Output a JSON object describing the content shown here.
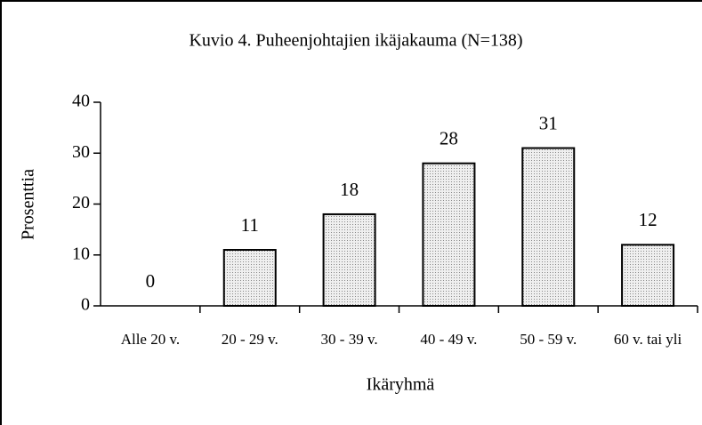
{
  "chart_data": {
    "type": "bar",
    "title": "Kuvio  4. Puheenjohtajien ikäjakauma (N=138)",
    "x_label": "Ikäryhmä",
    "y_label": "Prosenttia",
    "categories": [
      "Alle 20 v.",
      "20 - 29 v.",
      "30 - 39 v.",
      "40 - 49 v.",
      "50 - 59 v.",
      "60 v. tai yli"
    ],
    "values": [
      0,
      11,
      18,
      28,
      31,
      12
    ],
    "color": "#dcdcdc",
    "ylim": [
      0,
      40
    ],
    "yticks": [
      0,
      10,
      20,
      30,
      40
    ],
    "grid": false
  }
}
